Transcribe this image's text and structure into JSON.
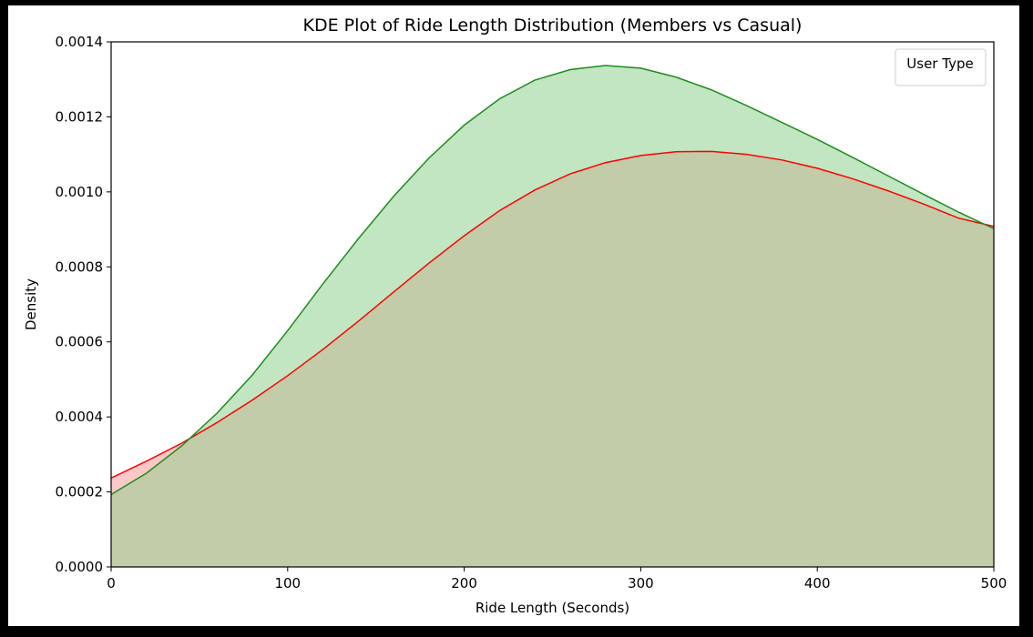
{
  "chart_data": {
    "type": "area",
    "title": "KDE Plot of Ride Length Distribution (Members vs Casual)",
    "xlabel": "Ride Length (Seconds)",
    "ylabel": "Density",
    "xlim": [
      0,
      500
    ],
    "ylim": [
      0,
      0.0014
    ],
    "x_ticks": [
      "0",
      "100",
      "200",
      "300",
      "400",
      "500"
    ],
    "y_ticks": [
      "0.0000",
      "0.0002",
      "0.0004",
      "0.0006",
      "0.0008",
      "0.0010",
      "0.0012",
      "0.0014"
    ],
    "grid": false,
    "legend": {
      "title": "User Type",
      "placement": "top-right"
    },
    "series": [
      {
        "color": "#ff0000",
        "fill": "#ff9a9a",
        "x": [
          0,
          20,
          40,
          60,
          80,
          100,
          120,
          140,
          160,
          180,
          200,
          220,
          240,
          260,
          280,
          300,
          320,
          340,
          360,
          380,
          400,
          420,
          440,
          460,
          480,
          500
        ],
        "values": [
          0.000237,
          0.000282,
          0.00033,
          0.000385,
          0.000445,
          0.00051,
          0.00058,
          0.000655,
          0.000733,
          0.00081,
          0.000883,
          0.00095,
          0.001005,
          0.001048,
          0.001078,
          0.001097,
          0.001107,
          0.001108,
          0.0011,
          0.001085,
          0.001063,
          0.001035,
          0.001003,
          0.000968,
          0.00093,
          0.000908
        ]
      },
      {
        "color": "#1e8c1e",
        "fill": "#8fcf8f",
        "x": [
          0,
          20,
          40,
          60,
          80,
          100,
          120,
          140,
          160,
          180,
          200,
          220,
          240,
          260,
          280,
          300,
          320,
          340,
          360,
          380,
          400,
          420,
          440,
          460,
          480,
          500
        ],
        "values": [
          0.000193,
          0.00025,
          0.000323,
          0.00041,
          0.000512,
          0.00063,
          0.000755,
          0.000875,
          0.000988,
          0.00109,
          0.001178,
          0.001248,
          0.001298,
          0.001326,
          0.001337,
          0.00133,
          0.001306,
          0.001272,
          0.00123,
          0.001185,
          0.00114,
          0.001092,
          0.001043,
          0.000994,
          0.000946,
          0.000902
        ]
      }
    ]
  }
}
